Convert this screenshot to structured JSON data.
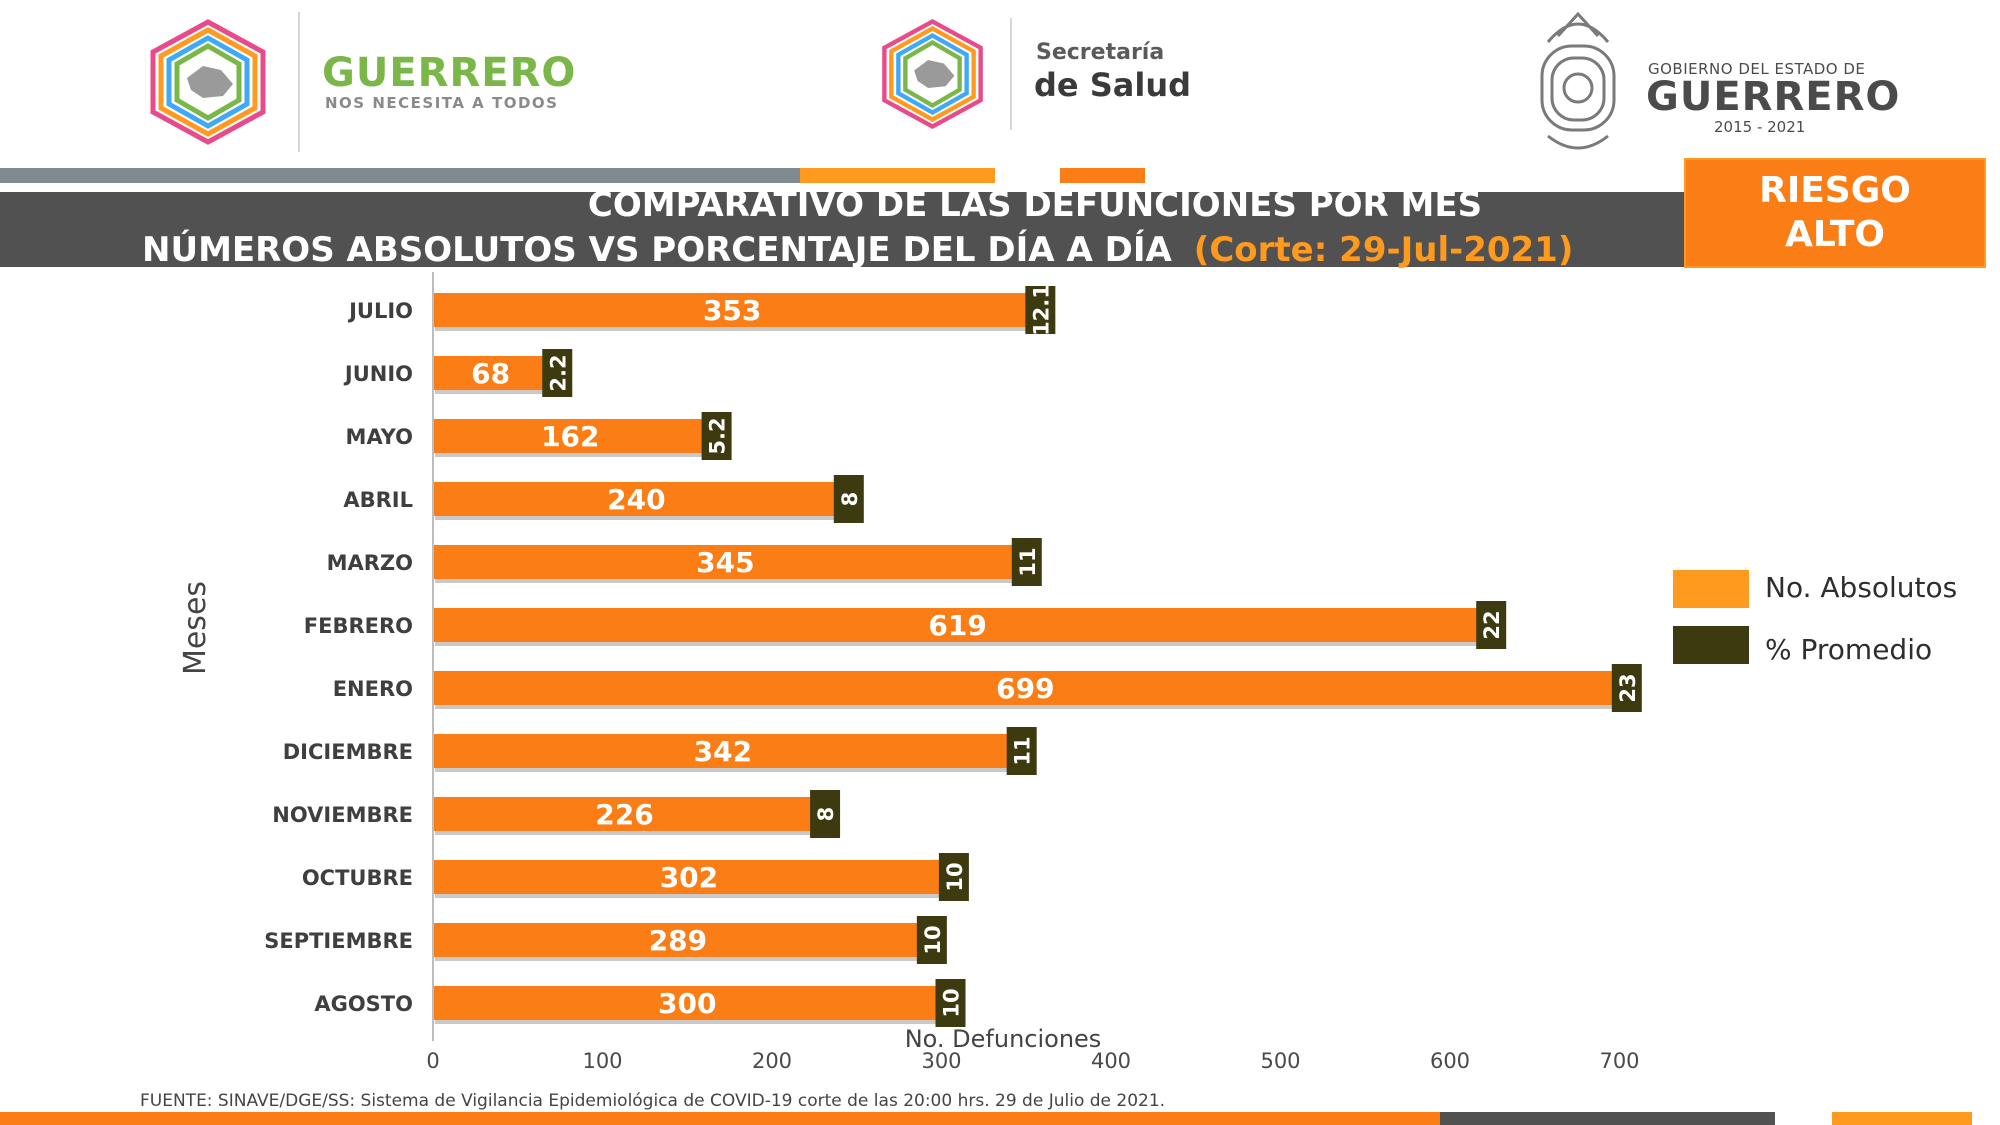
{
  "header": {
    "guerrero_brand": {
      "title": "GUERRERO",
      "subtitle": "NOS NECESITA A TODOS"
    },
    "salud_brand": {
      "line1": "Secretaría",
      "line2": "de Salud"
    },
    "gobierno_brand": {
      "line1": "GOBIERNO DEL ESTADO DE",
      "line2": "GUERRERO",
      "line3": "2015 - 2021"
    }
  },
  "title": {
    "line1": "COMPARATIVO DE LAS DEFUNCIONES POR MES",
    "line2": "NÚMEROS ABSOLUTOS VS PORCENTAJE DEL DÍA A DÍA",
    "corte": "(Corte: 29-Jul-2021)"
  },
  "risk": {
    "line1": "RIESGO",
    "line2": "ALTO"
  },
  "chart_data": {
    "type": "bar",
    "orientation": "horizontal",
    "categories": [
      "JULIO",
      "JUNIO",
      "MAYO",
      "ABRIL",
      "MARZO",
      "FEBRERO",
      "ENERO",
      "DICIEMBRE",
      "NOVIEMBRE",
      "OCTUBRE",
      "SEPTIEMBRE",
      "AGOSTO"
    ],
    "series": [
      {
        "name": "No. Absolutos",
        "color": "#fb7d16",
        "values": [
          353,
          68,
          162,
          240,
          345,
          619,
          699,
          342,
          226,
          302,
          289,
          300
        ]
      },
      {
        "name": "% Promedio",
        "color": "#3e3a0f",
        "values": [
          12.1,
          2.2,
          5.2,
          8,
          11,
          22,
          23,
          11,
          8,
          10,
          10,
          10
        ]
      }
    ],
    "value_labels": [
      "353",
      "68",
      "162",
      "240",
      "345",
      "619",
      "699",
      "342",
      "226",
      "302",
      "289",
      "300"
    ],
    "pct_labels": [
      "12.1",
      "2.2",
      "5.2",
      "8",
      "11",
      "22",
      "23",
      "11",
      "8",
      "10",
      "10",
      "10"
    ],
    "xlabel": "No. Defunciones",
    "ylabel": "Meses",
    "xlim": [
      0,
      700
    ],
    "xticks": [
      "0",
      "100",
      "200",
      "300",
      "400",
      "500",
      "600",
      "700"
    ],
    "grid": false,
    "legend_position": "right",
    "legend_color_absolutos": "#ff9a1f",
    "legend_color_promedio": "#3e3a0f"
  },
  "source": "FUENTE: SINAVE/DGE/SS: Sistema de Vigilancia Epidemiológica de COVID-19 corte de las 20:00 hrs. 29 de Julio de 2021."
}
